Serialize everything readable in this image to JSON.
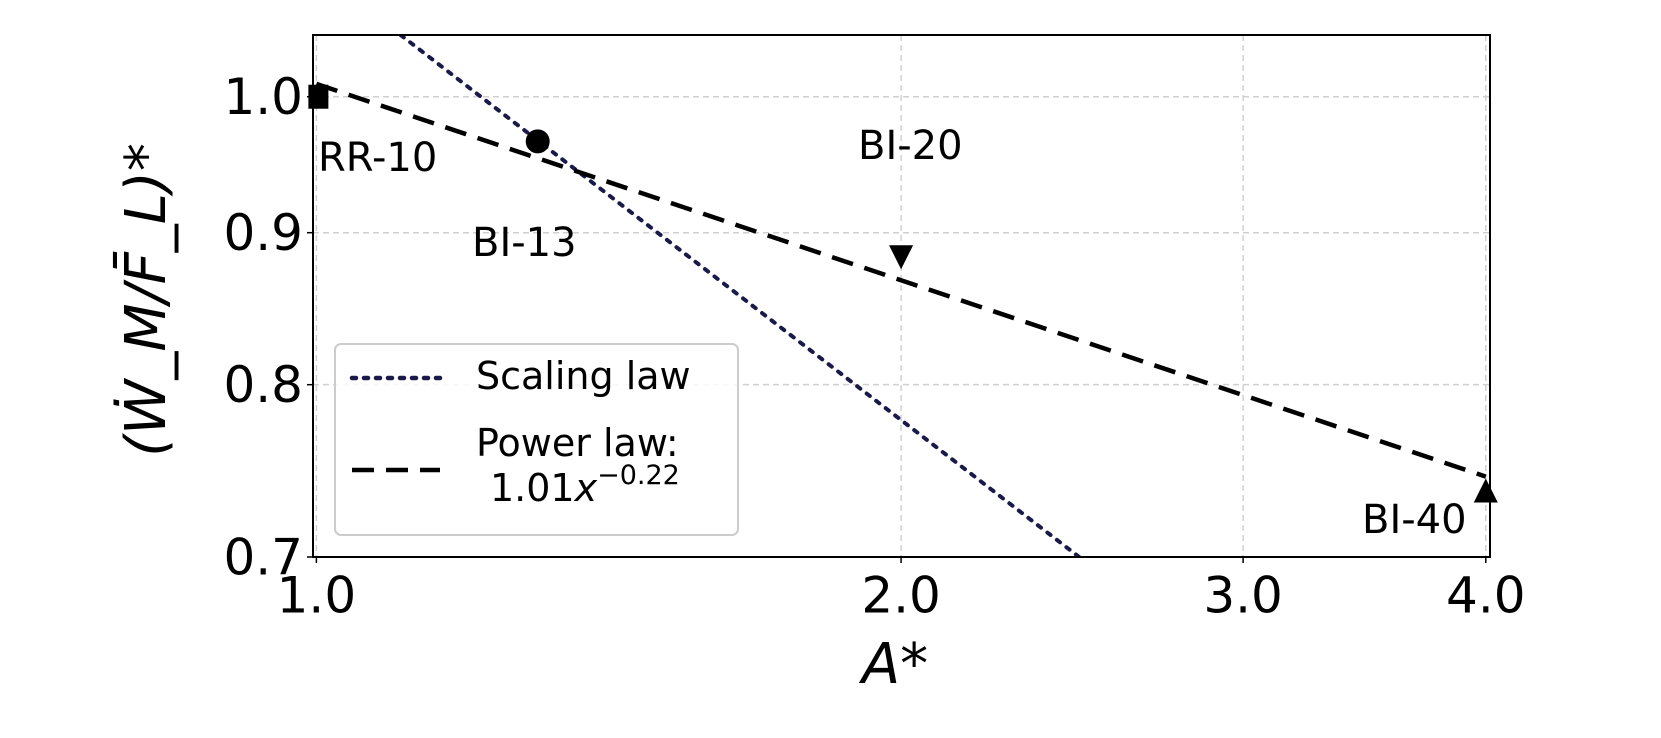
{
  "chart_data": {
    "type": "line",
    "x_label": "A*",
    "y_label": "(Ẇ_M/F̄_L)*",
    "xscale": "log",
    "yscale": "log",
    "grid": true,
    "legend": "lower left",
    "xlim": [
      0.996,
      4.02
    ],
    "xticks": [
      {
        "value": 1,
        "label": "1.0"
      },
      {
        "value": 2,
        "label": "2.0"
      },
      {
        "value": 3,
        "label": "3.0"
      },
      {
        "value": 4,
        "label": "4.0"
      }
    ],
    "ylim": [
      0.7,
      1.049
    ],
    "yticks": [
      {
        "value": 0.7,
        "label": "0.7"
      },
      0.8,
      0.9,
      {
        "value": 1,
        "label": "1.0"
      }
    ],
    "series": [
      {
        "name": "Scaling law",
        "color": "#1a1a4a",
        "style": "dotted",
        "x": [
          1.105,
          2.47
        ],
        "values": [
          1.049,
          0.7
        ]
      },
      {
        "name": "Power law:\n1.01x^−0.22",
        "color": "#000000",
        "style": "dashed",
        "x": [
          1,
          4
        ],
        "values": [
          1.01,
          0.745
        ]
      }
    ],
    "points": [
      {
        "label": "RR-10",
        "marker": "square",
        "x": 1.0,
        "y": 1.0
      },
      {
        "label": "BI-13",
        "marker": "circle",
        "x": 1.3,
        "y": 0.966
      },
      {
        "label": "BI-20",
        "marker": "triangle-down",
        "x": 2.0,
        "y": 0.883
      },
      {
        "label": "BI-40",
        "marker": "triangle-up",
        "x": 4.0,
        "y": 0.737
      }
    ]
  }
}
